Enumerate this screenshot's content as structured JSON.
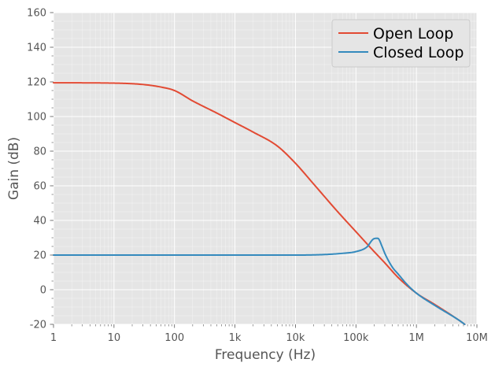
{
  "chart_data": {
    "type": "line",
    "title": "",
    "xlabel": "Frequency (Hz)",
    "ylabel": "Gain (dB)",
    "xscale": "log",
    "xlim": [
      1,
      10000000
    ],
    "ylim": [
      -20,
      160
    ],
    "grid": true,
    "legend_position": "top-right",
    "background": "#e5e5e5",
    "x_ticks": [
      1,
      10,
      100,
      1000,
      10000,
      100000,
      1000000,
      10000000
    ],
    "x_tick_labels": [
      "1",
      "10",
      "100",
      "1k",
      "10k",
      "100k",
      "1M",
      "10M"
    ],
    "y_ticks": [
      -20,
      0,
      20,
      40,
      60,
      80,
      100,
      120,
      140,
      160
    ],
    "y_tick_labels": [
      "-20",
      "0",
      "20",
      "40",
      "60",
      "80",
      "100",
      "120",
      "140",
      "160"
    ],
    "series": [
      {
        "name": "Open Loop",
        "color": "#e24a33",
        "points": [
          [
            1,
            119.5
          ],
          [
            10,
            119.3
          ],
          [
            30,
            118.5
          ],
          [
            60,
            117
          ],
          [
            100,
            115
          ],
          [
            200,
            109
          ],
          [
            500,
            102
          ],
          [
            1000,
            96.5
          ],
          [
            2000,
            91
          ],
          [
            5000,
            83
          ],
          [
            10000,
            73
          ],
          [
            20000,
            61
          ],
          [
            50000,
            45
          ],
          [
            100000,
            33.5
          ],
          [
            200000,
            22
          ],
          [
            300000,
            15.5
          ],
          [
            500000,
            7
          ],
          [
            1000000,
            -2
          ],
          [
            2000000,
            -8.5
          ],
          [
            5000000,
            -17.5
          ],
          [
            6300000,
            -20
          ]
        ]
      },
      {
        "name": "Closed Loop",
        "color": "#348abd",
        "points": [
          [
            1,
            20
          ],
          [
            10,
            20
          ],
          [
            100,
            20
          ],
          [
            1000,
            20
          ],
          [
            10000,
            20
          ],
          [
            30000,
            20.3
          ],
          [
            60000,
            21
          ],
          [
            100000,
            22
          ],
          [
            150000,
            24.5
          ],
          [
            200000,
            29.5
          ],
          [
            230000,
            29.7
          ],
          [
            270000,
            25
          ],
          [
            300000,
            21
          ],
          [
            400000,
            13
          ],
          [
            500000,
            9
          ],
          [
            700000,
            3
          ],
          [
            1000000,
            -2
          ],
          [
            2000000,
            -9
          ],
          [
            5000000,
            -17.5
          ],
          [
            6300000,
            -20
          ]
        ]
      }
    ]
  }
}
